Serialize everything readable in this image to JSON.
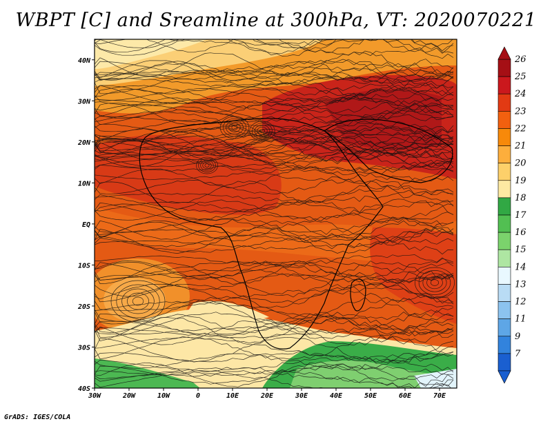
{
  "title": "WBPT [C] and Sreamline at 300hPa, VT: 2020070221",
  "footer": "GrADS: IGES/COLA",
  "map": {
    "lon_range": [
      -30,
      75
    ],
    "lat_range": [
      -40,
      45
    ],
    "x_ticks": [
      "30W",
      "20W",
      "10W",
      "0",
      "10E",
      "20E",
      "30E",
      "40E",
      "50E",
      "60E",
      "70E"
    ],
    "y_ticks": [
      "40N",
      "30N",
      "20N",
      "10N",
      "EQ",
      "10S",
      "20S",
      "30S",
      "40S"
    ],
    "variable": "Wet-bulb potential temperature",
    "overlay": "Streamlines",
    "level": "300hPa"
  },
  "colorbar": {
    "labels": [
      "26",
      "25",
      "24",
      "23",
      "22",
      "21",
      "20",
      "19",
      "18",
      "17",
      "16",
      "15",
      "14",
      "13",
      "12",
      "11",
      "9",
      "7"
    ],
    "colors": [
      "#a50f15",
      "#cb181d",
      "#e23a13",
      "#f2600f",
      "#f7890a",
      "#fdae3c",
      "#fdd06a",
      "#fde9a2",
      "#31a844",
      "#52bf52",
      "#7bd36c",
      "#aee6a2",
      "#e9f8ff",
      "#b9dcf5",
      "#8cc3ef",
      "#5ea6e6",
      "#3283dd",
      "#1a5fd0"
    ]
  }
}
